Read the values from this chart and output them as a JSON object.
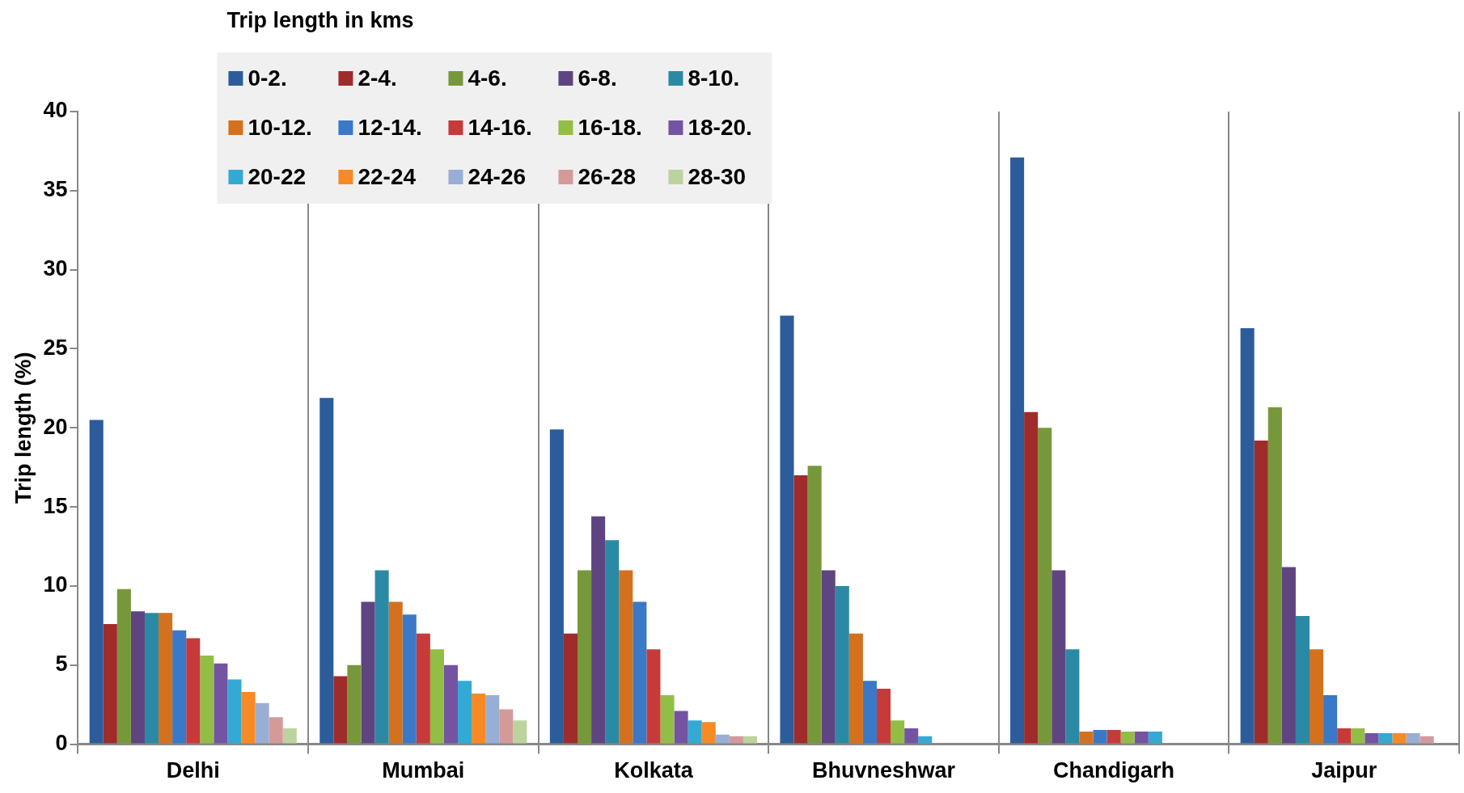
{
  "chart_data": {
    "type": "bar",
    "ylabel": "Trip length (%)",
    "legend_title": "Trip length in kms",
    "categories": [
      "Delhi",
      "Mumbai",
      "Kolkata",
      "Bhuvneshwar",
      "Chandigarh",
      "Jaipur"
    ],
    "series": [
      {
        "name": "0-2.",
        "color": "#2c5d9a",
        "values": [
          20.5,
          21.9,
          19.9,
          27.1,
          37.1,
          26.3
        ]
      },
      {
        "name": "2-4.",
        "color": "#a02b2b",
        "values": [
          7.6,
          4.3,
          7.0,
          17.0,
          21.0,
          19.2
        ]
      },
      {
        "name": "4-6.",
        "color": "#77983a",
        "values": [
          9.8,
          5.0,
          11.0,
          17.6,
          20.0,
          21.3
        ]
      },
      {
        "name": "6-8.",
        "color": "#5f4482",
        "values": [
          8.4,
          9.0,
          14.4,
          11.0,
          11.0,
          11.2
        ]
      },
      {
        "name": "8-10.",
        "color": "#2a8aa5",
        "values": [
          8.3,
          11.0,
          12.9,
          10.0,
          6.0,
          8.1
        ]
      },
      {
        "name": "10-12.",
        "color": "#d4711e",
        "values": [
          8.3,
          9.0,
          11.0,
          7.0,
          0.8,
          6.0
        ]
      },
      {
        "name": "12-14.",
        "color": "#3a78c8",
        "values": [
          7.2,
          8.2,
          9.0,
          4.0,
          0.9,
          3.1
        ]
      },
      {
        "name": "14-16.",
        "color": "#c83a3a",
        "values": [
          6.7,
          7.0,
          6.0,
          3.5,
          0.9,
          1.0
        ]
      },
      {
        "name": "16-18.",
        "color": "#93be45",
        "values": [
          5.6,
          6.0,
          3.1,
          1.5,
          0.8,
          1.0
        ]
      },
      {
        "name": "18-20.",
        "color": "#7553a3",
        "values": [
          5.1,
          5.0,
          2.1,
          1.0,
          0.8,
          0.7
        ]
      },
      {
        "name": "20-22",
        "color": "#33aad3",
        "values": [
          4.1,
          4.0,
          1.5,
          0.5,
          0.8,
          0.7
        ]
      },
      {
        "name": "22-24",
        "color": "#f78a25",
        "values": [
          3.3,
          3.2,
          1.4,
          null,
          null,
          0.7
        ]
      },
      {
        "name": "24-26",
        "color": "#98aed4",
        "values": [
          2.6,
          3.1,
          0.6,
          null,
          null,
          0.7
        ]
      },
      {
        "name": "26-28",
        "color": "#d49a9a",
        "values": [
          1.7,
          2.2,
          0.5,
          null,
          null,
          0.5
        ]
      },
      {
        "name": "28-30",
        "color": "#bcd39e",
        "values": [
          1.0,
          1.5,
          0.5,
          null,
          null,
          null
        ]
      }
    ],
    "ylim": [
      0,
      40
    ],
    "yticks": [
      0,
      5,
      10,
      15,
      20,
      25,
      30,
      35,
      40
    ],
    "grid": "x",
    "legend": "top left"
  }
}
